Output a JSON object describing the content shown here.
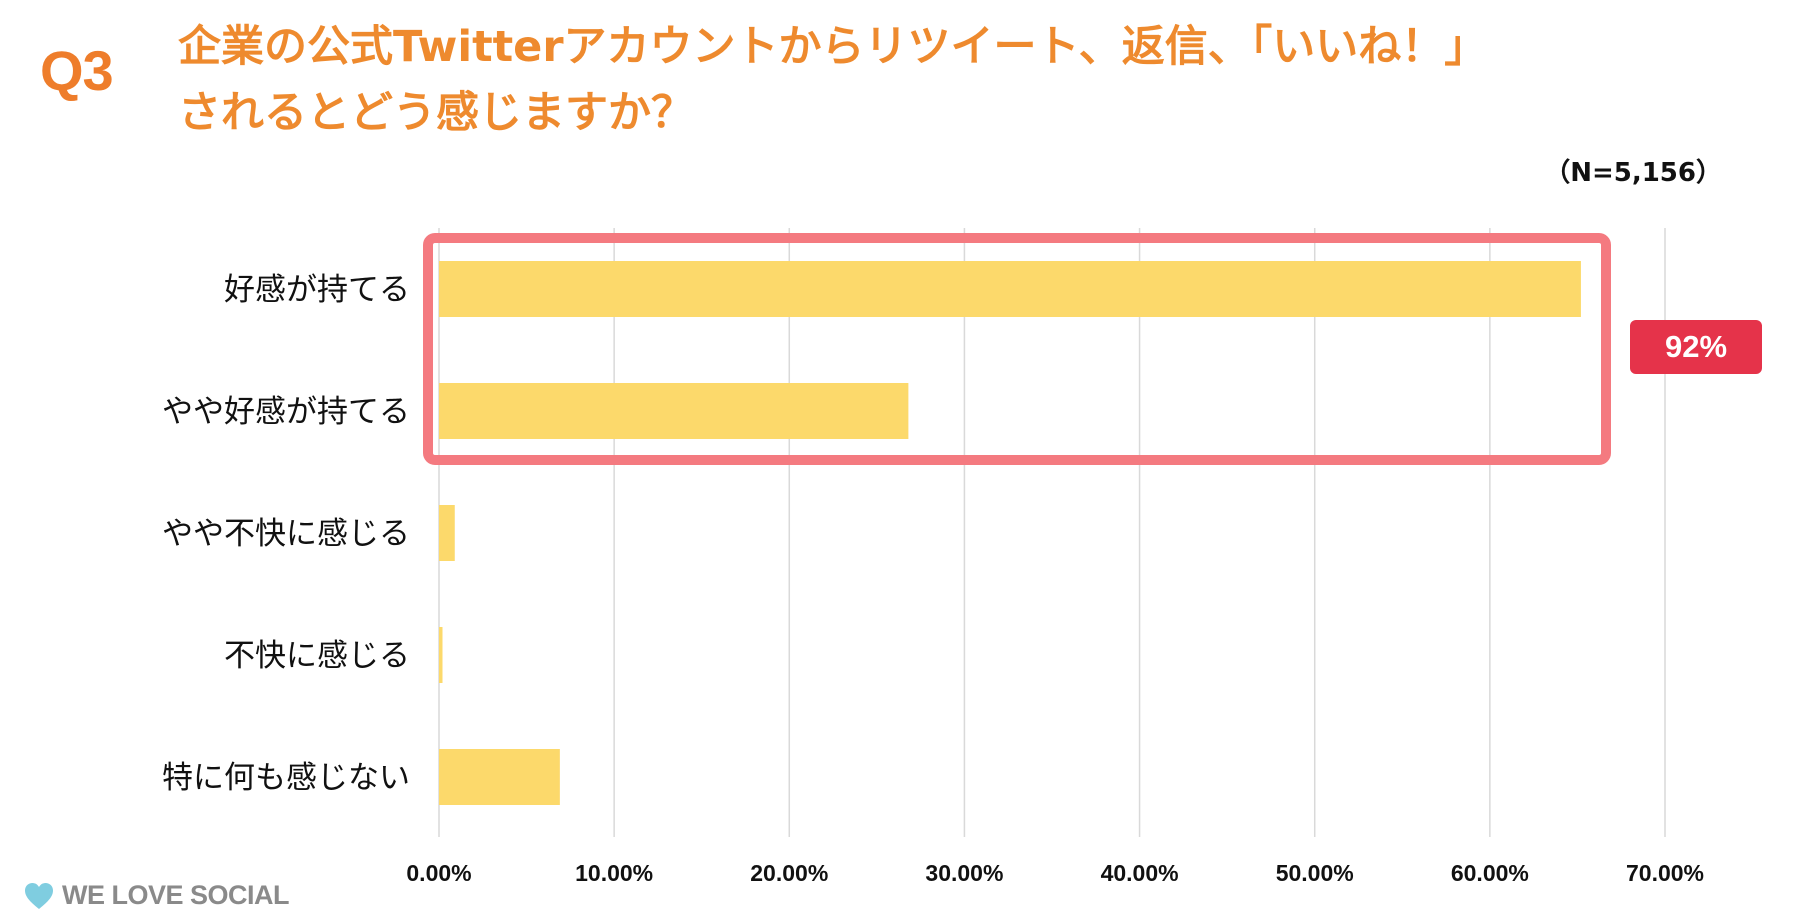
{
  "question": {
    "number": "Q3",
    "line1": "企業の公式Twitterアカウントからリツイート、返信、「いいね！」",
    "line2": "されるとどう感じますか？"
  },
  "sample_size": "（N=5,156）",
  "highlight": {
    "label": "92%",
    "color": "#e5334a",
    "box_color": "#f47a80"
  },
  "logo": {
    "text": "WE LOVE SOCIAL",
    "icon": "heart-icon"
  },
  "colors": {
    "bar": "#fcd96b",
    "grid": "#d9d9d9",
    "accent": "#ee8a2e"
  },
  "chart_data": {
    "type": "bar",
    "orientation": "horizontal",
    "categories": [
      "好感が持てる",
      "やや好感が持てる",
      "やや不快に感じる",
      "不快に感じる",
      "特に何も感じない"
    ],
    "values": [
      65.2,
      26.8,
      0.9,
      0.2,
      6.9
    ],
    "unit": "%",
    "xlim": [
      0,
      70
    ],
    "ticks": [
      "0.00%",
      "10.00%",
      "20.00%",
      "30.00%",
      "40.00%",
      "50.00%",
      "60.00%",
      "70.00%"
    ],
    "grid": true,
    "legend": "none"
  }
}
